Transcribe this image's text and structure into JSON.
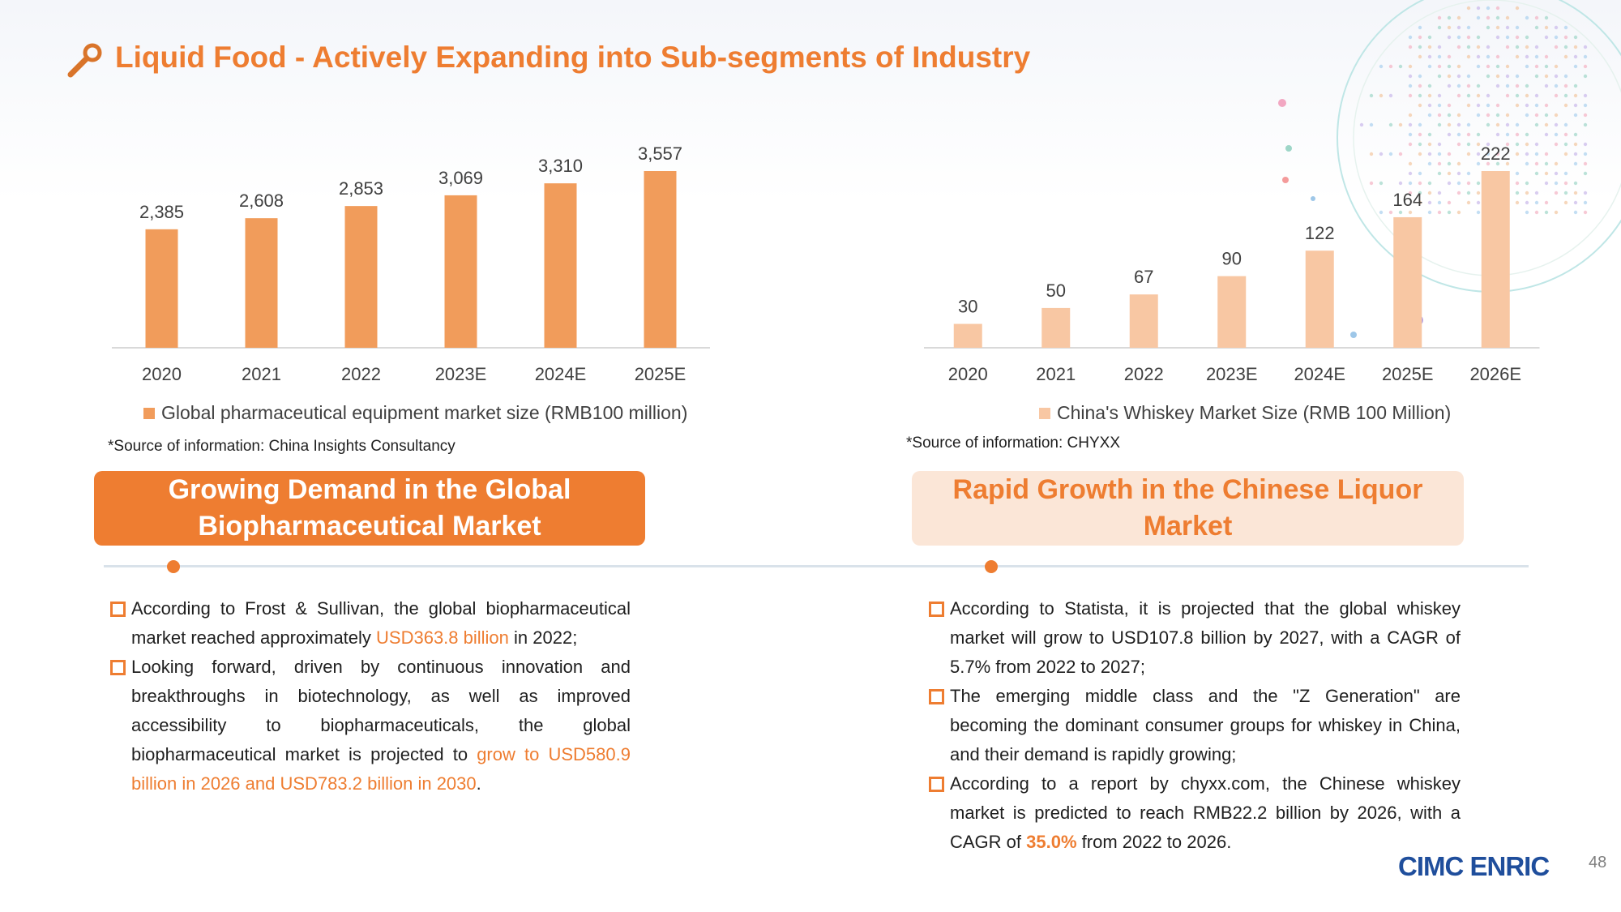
{
  "slide": {
    "title": "Liquid Food - Actively Expanding into Sub-segments of Industry",
    "page_number": "48",
    "logo_text": "CIMC ENRIC",
    "accent_color": "#ee7d31",
    "logo_color": "#1f4e9c"
  },
  "chart_data": [
    {
      "type": "bar",
      "categories": [
        "2020",
        "2021",
        "2022",
        "2023E",
        "2024E",
        "2025E"
      ],
      "series": [
        {
          "name": "Global pharmaceutical equipment market size (RMB100 million)",
          "values": [
            2385,
            2608,
            2853,
            3069,
            3310,
            3557
          ]
        }
      ],
      "value_labels": [
        "2,385",
        "2,608",
        "2,853",
        "3,069",
        "3,310",
        "3,557"
      ],
      "color": "#f19c5b",
      "legend_position": "bottom",
      "grid": false
    },
    {
      "type": "bar",
      "categories": [
        "2020",
        "2021",
        "2022",
        "2023E",
        "2024E",
        "2025E",
        "2026E"
      ],
      "series": [
        {
          "name": "China's Whiskey Market Size (RMB 100 Million)",
          "values": [
            30,
            50,
            67,
            90,
            122,
            164,
            222
          ]
        }
      ],
      "value_labels": [
        "30",
        "50",
        "67",
        "90",
        "122",
        "164",
        "222"
      ],
      "color": "#f8c7a3",
      "legend_position": "bottom",
      "grid": false
    }
  ],
  "left": {
    "source": "*Source of information: China Insights Consultancy",
    "banner": "Growing Demand in the Global Biopharmaceutical Market",
    "bullets": [
      {
        "parts": [
          {
            "text": "According to Frost & Sullivan, the global biopharmaceutical market reached approximately ",
            "style": ""
          },
          {
            "text": "USD363.8 billion",
            "style": "hl"
          },
          {
            "text": " in 2022;",
            "style": ""
          }
        ]
      },
      {
        "parts": [
          {
            "text": "Looking forward, driven by continuous innovation and breakthroughs in biotechnology, as well as improved accessibility to biopharmaceuticals, the global biopharmaceutical market is projected to ",
            "style": ""
          },
          {
            "text": "grow to USD580.9 billion in 2026 and USD783.2 billion in 2030",
            "style": "hl"
          },
          {
            "text": ".",
            "style": ""
          }
        ]
      }
    ]
  },
  "right": {
    "source": "*Source of information: CHYXX",
    "banner": "Rapid Growth in the Chinese Liquor Market",
    "bullets": [
      {
        "parts": [
          {
            "text": "According to Statista, it is projected that the global whiskey market will grow to USD107.8 billion by 2027, with a CAGR of 5.7% from 2022 to 2027;",
            "style": ""
          }
        ]
      },
      {
        "parts": [
          {
            "text": "The emerging middle class and the \"Z Generation\" are becoming the dominant consumer groups for whiskey in China, and their demand is rapidly growing;",
            "style": ""
          }
        ]
      },
      {
        "parts": [
          {
            "text": "According to a report by chyxx.com, the Chinese whiskey market is predicted to reach RMB22.2 billion by 2026, with a CAGR of ",
            "style": ""
          },
          {
            "text": "35.0%",
            "style": "hl-bold"
          },
          {
            "text": " from 2022 to 2026.",
            "style": ""
          }
        ]
      }
    ]
  }
}
